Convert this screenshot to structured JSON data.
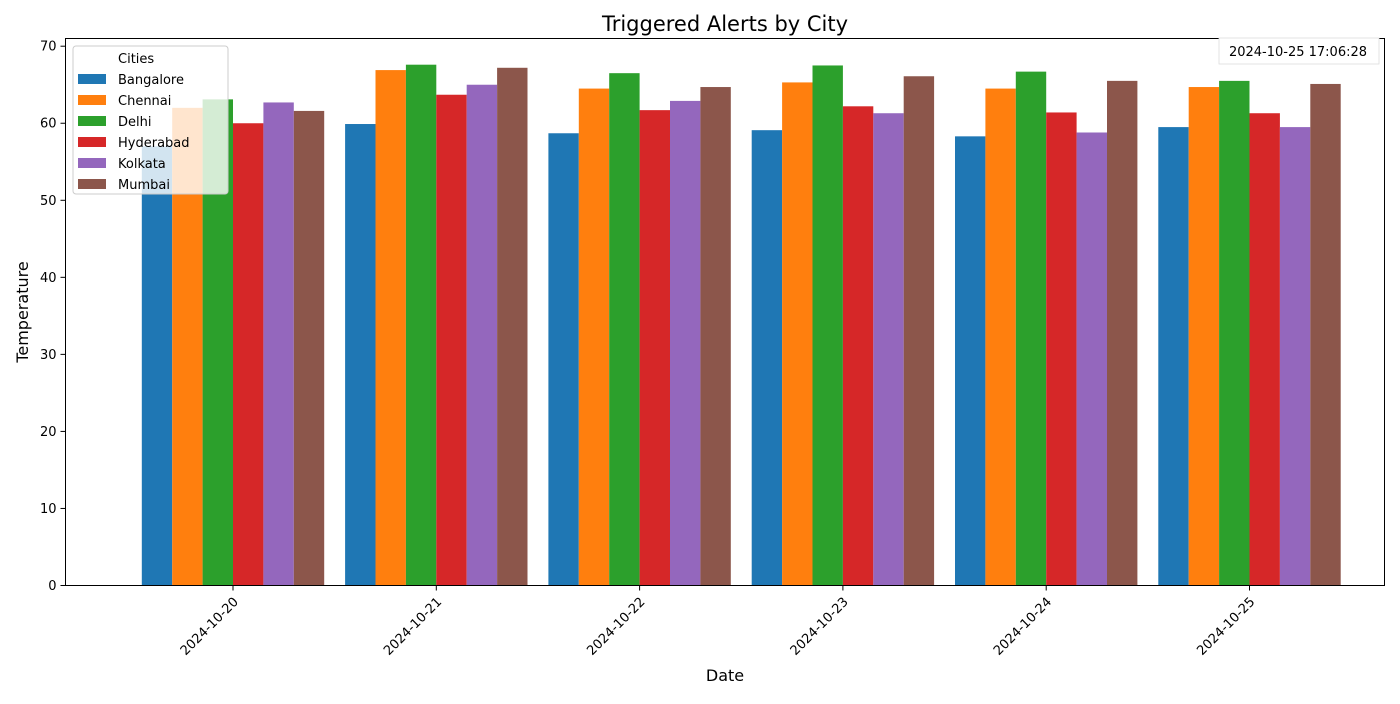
{
  "chart_data": {
    "type": "bar",
    "title": "Triggered Alerts by City",
    "xlabel": "Date",
    "ylabel": "Temperature",
    "ylim": [
      0,
      71
    ],
    "yticks": [
      0,
      10,
      20,
      30,
      40,
      50,
      60,
      70
    ],
    "categories": [
      "2024-10-20",
      "2024-10-21",
      "2024-10-22",
      "2024-10-23",
      "2024-10-24",
      "2024-10-25"
    ],
    "series": [
      {
        "name": "Bangalore",
        "color": "#1f77b4",
        "values": [
          57.0,
          59.9,
          58.7,
          59.1,
          58.3,
          59.5
        ]
      },
      {
        "name": "Chennai",
        "color": "#ff7f0e",
        "values": [
          62.0,
          66.9,
          64.5,
          65.3,
          64.5,
          64.7
        ]
      },
      {
        "name": "Delhi",
        "color": "#2ca02c",
        "values": [
          63.1,
          67.6,
          66.5,
          67.5,
          66.7,
          65.5
        ]
      },
      {
        "name": "Hyderabad",
        "color": "#d62728",
        "values": [
          60.0,
          63.7,
          61.7,
          62.2,
          61.4,
          61.3
        ]
      },
      {
        "name": "Kolkata",
        "color": "#9467bd",
        "values": [
          62.7,
          65.0,
          62.9,
          61.3,
          58.8,
          59.5
        ]
      },
      {
        "name": "Mumbai",
        "color": "#8c564b",
        "values": [
          61.6,
          67.2,
          64.7,
          66.1,
          65.5,
          65.1
        ]
      }
    ],
    "legend": {
      "title": "Cities",
      "position": "top-left"
    },
    "annotation": "2024-10-25 17:06:28",
    "grid": false
  }
}
